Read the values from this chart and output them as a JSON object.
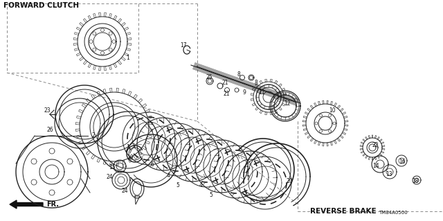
{
  "bg_color": "#ffffff",
  "forward_clutch_label": "FORWARD CLUTCH",
  "reverse_brake_label": "REVERSE BRAKE",
  "part_number": "TM84A0500",
  "fr_label": "FR.",
  "figsize": [
    6.4,
    3.19
  ],
  "dpi": 100
}
